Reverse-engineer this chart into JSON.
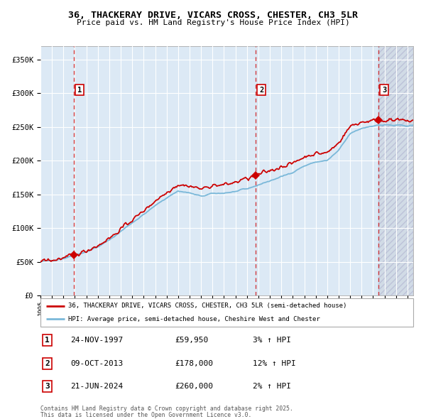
{
  "title1": "36, THACKERAY DRIVE, VICARS CROSS, CHESTER, CH3 5LR",
  "title2": "Price paid vs. HM Land Registry's House Price Index (HPI)",
  "ylabel_ticks": [
    "£0",
    "£50K",
    "£100K",
    "£150K",
    "£200K",
    "£250K",
    "£300K",
    "£350K"
  ],
  "ytick_vals": [
    0,
    50000,
    100000,
    150000,
    200000,
    250000,
    300000,
    350000
  ],
  "ylim": [
    0,
    370000
  ],
  "xlim_start": 1995.0,
  "xlim_end": 2027.5,
  "sale1_date": 1997.9,
  "sale1_price": 59950,
  "sale1_label": "1",
  "sale1_display": "24-NOV-1997",
  "sale1_amount": "£59,950",
  "sale1_hpi": "3% ↑ HPI",
  "sale2_date": 2013.77,
  "sale2_price": 178000,
  "sale2_label": "2",
  "sale2_display": "09-OCT-2013",
  "sale2_amount": "£178,000",
  "sale2_hpi": "12% ↑ HPI",
  "sale3_date": 2024.47,
  "sale3_price": 260000,
  "sale3_label": "3",
  "sale3_display": "21-JUN-2024",
  "sale3_amount": "£260,000",
  "sale3_hpi": "2% ↑ HPI",
  "hpi_line_color": "#7ab8d9",
  "price_line_color": "#cc0000",
  "plot_bg": "#dce9f5",
  "hatch_bg": "#c8cfd8",
  "legend_label1": "36, THACKERAY DRIVE, VICARS CROSS, CHESTER, CH3 5LR (semi-detached house)",
  "legend_label2": "HPI: Average price, semi-detached house, Cheshire West and Chester",
  "footer1": "Contains HM Land Registry data © Crown copyright and database right 2025.",
  "footer2": "This data is licensed under the Open Government Licence v3.0."
}
